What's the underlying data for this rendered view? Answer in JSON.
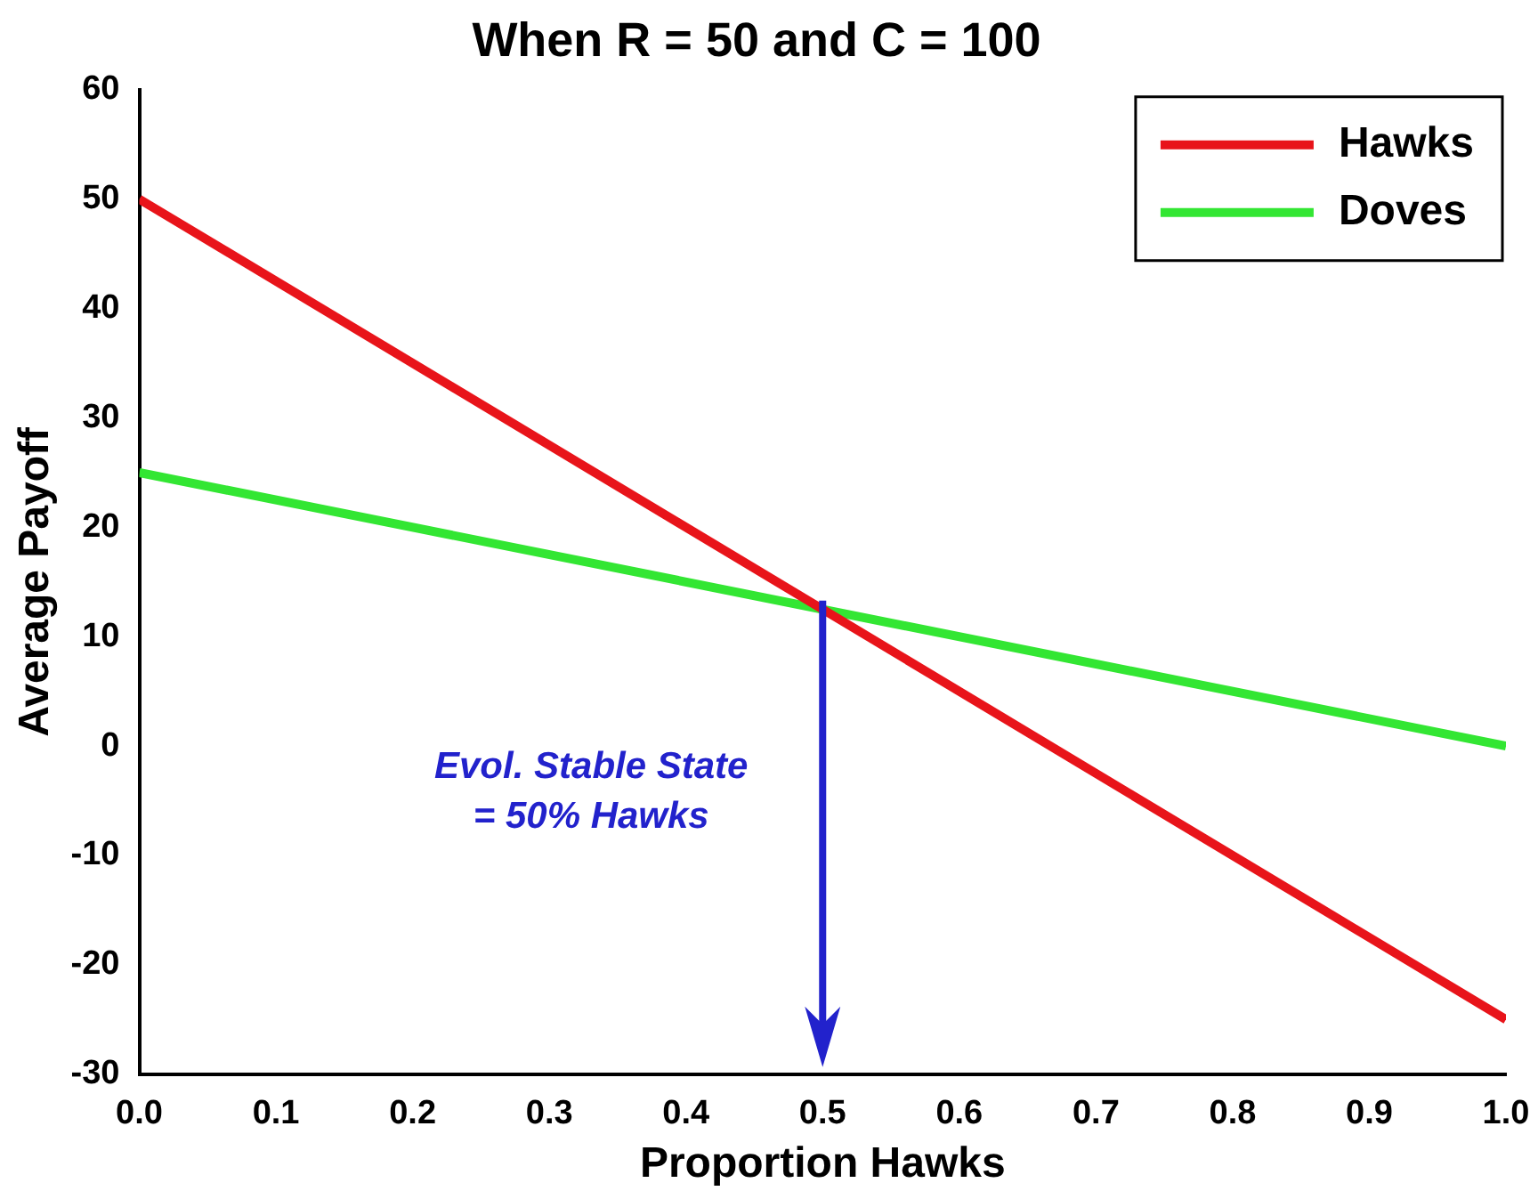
{
  "chart_data": {
    "type": "line",
    "title": "When R = 50 and C = 100",
    "xlabel": "Proportion Hawks",
    "ylabel": "Average Payoff",
    "x": [
      0,
      1
    ],
    "series": [
      {
        "name": "Hawks",
        "color": "#e8141a",
        "values": [
          50,
          -25
        ]
      },
      {
        "name": "Doves",
        "color": "#33e633",
        "values": [
          25,
          0
        ]
      }
    ],
    "xlim": [
      0,
      1
    ],
    "xticks": [
      {
        "value": 0,
        "label": "0.0"
      },
      0.1,
      0.2,
      0.3,
      0.4,
      0.5,
      0.6,
      0.7,
      0.8,
      0.9,
      {
        "value": 1,
        "label": "1.0"
      }
    ],
    "ylim": [
      -30,
      60
    ],
    "yticks": [
      -30,
      -20,
      -10,
      0,
      10,
      20,
      30,
      40,
      50,
      60
    ],
    "annotations": [
      "Evol. Stable State = 50% Hawks"
    ],
    "grid": false,
    "legend": "top right",
    "marker": "none",
    "line_style": "solid"
  }
}
